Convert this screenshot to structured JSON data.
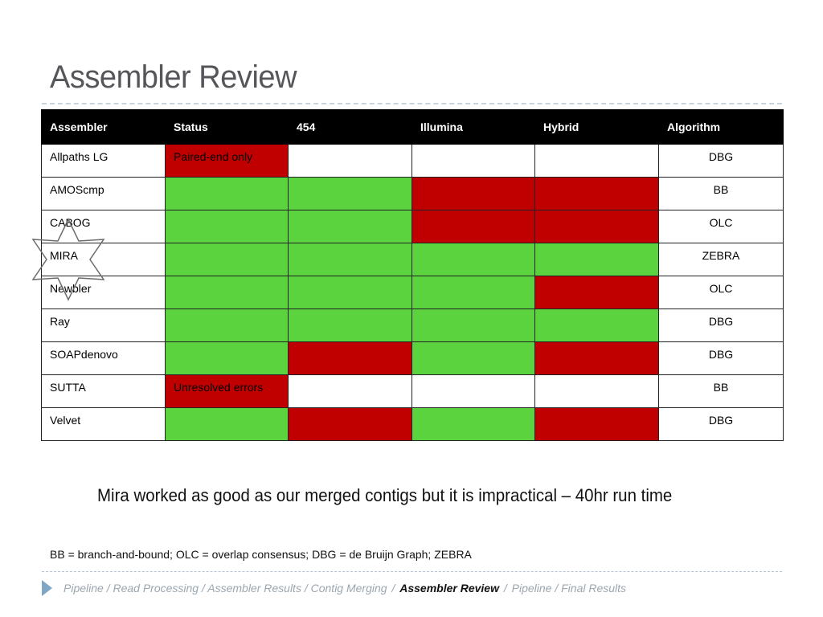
{
  "title": "Assembler Review",
  "table": {
    "headers": [
      "Assembler",
      "Status",
      "454",
      "Illumina",
      "Hybrid",
      "Algorithm"
    ],
    "rows": [
      {
        "name": "Allpaths LG",
        "status": "Paired-end only",
        "cells": [
          "r",
          "w",
          "w",
          "w"
        ],
        "algorithm": "DBG"
      },
      {
        "name": "AMOScmp",
        "status": "",
        "cells": [
          "g",
          "g",
          "r",
          "r"
        ],
        "algorithm": "BB"
      },
      {
        "name": "CABOG",
        "status": "",
        "cells": [
          "g",
          "g",
          "r",
          "r"
        ],
        "algorithm": "OLC"
      },
      {
        "name": "MIRA",
        "status": "",
        "cells": [
          "g",
          "g",
          "g",
          "g"
        ],
        "algorithm": "ZEBRA"
      },
      {
        "name": "Newbler",
        "status": "",
        "cells": [
          "g",
          "g",
          "g",
          "r"
        ],
        "algorithm": "OLC"
      },
      {
        "name": "Ray",
        "status": "",
        "cells": [
          "g",
          "g",
          "g",
          "g"
        ],
        "algorithm": "DBG"
      },
      {
        "name": "SOAPdenovo",
        "status": "",
        "cells": [
          "g",
          "r",
          "g",
          "r"
        ],
        "algorithm": "DBG"
      },
      {
        "name": "SUTTA",
        "status": "Unresolved errors",
        "cells": [
          "r",
          "w",
          "w",
          "w"
        ],
        "algorithm": "BB"
      },
      {
        "name": "Velvet",
        "status": "",
        "cells": [
          "g",
          "r",
          "g",
          "r"
        ],
        "algorithm": "DBG"
      }
    ]
  },
  "colors": {
    "green": "#5bd33e",
    "red": "#c00000",
    "header": "#000000"
  },
  "highlight_icon": "six-point-star-icon",
  "note": "Mira worked as good as our merged contigs but it is impractical – 40hr run time",
  "legend": "BB = branch-and-bound; OLC = overlap consensus; DBG = de Bruijn Graph; ZEBRA",
  "breadcrumb": {
    "items": [
      {
        "label": "Pipeline / Read Processing / Assembler Results / Contig Merging",
        "current": false
      },
      {
        "label": "Assembler Review",
        "current": true
      },
      {
        "label": "Pipeline / Final Results",
        "current": false
      }
    ],
    "separator": "/"
  }
}
